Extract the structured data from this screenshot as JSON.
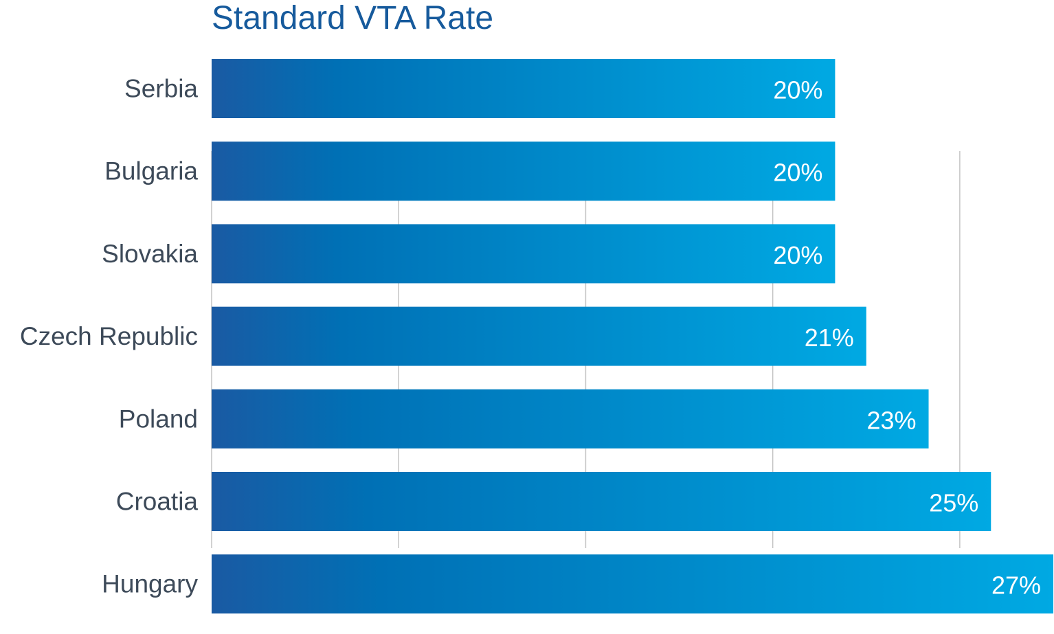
{
  "chart_data": {
    "type": "bar",
    "orientation": "horizontal",
    "title": "Standard VTA Rate",
    "xlabel": "",
    "ylabel": "",
    "categories": [
      "Serbia",
      "Bulgaria",
      "Slovakia",
      "Czech Republic",
      "Poland",
      "Croatia",
      "Hungary"
    ],
    "values": [
      20,
      20,
      20,
      21,
      23,
      25,
      27
    ],
    "value_labels": [
      "20%",
      "20%",
      "20%",
      "21%",
      "23%",
      "25%",
      "27%"
    ],
    "xlim": [
      0,
      27
    ],
    "gridlines_at": [
      6,
      12,
      18,
      24
    ],
    "grid": true,
    "legend": "none",
    "colors": {
      "bar_gradient_start": "#1a5aa3",
      "bar_gradient_mid": "#0070b5",
      "bar_gradient_end": "#00a9e3",
      "title": "#165a9c",
      "category_label": "#3d4a59",
      "value_label": "#ffffff",
      "gridline": "#c4c4c4"
    }
  }
}
